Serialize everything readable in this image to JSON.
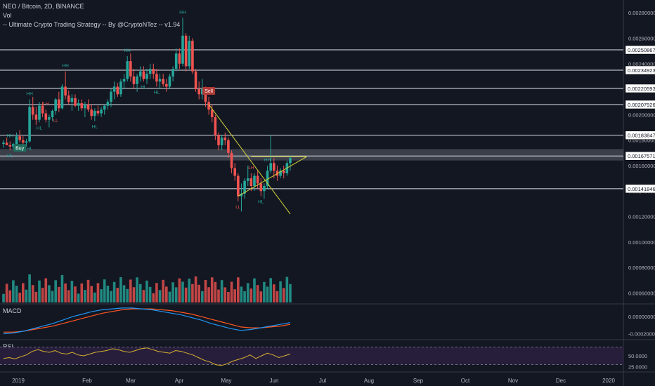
{
  "header": {
    "symbol_line": "NEO / Bitcoin, 2D, BINANCE",
    "vol_label": "Vol",
    "strategy_line": "-- Ultimate Crypto Trading Strategy -- By @CryptoNTez -- v1.94"
  },
  "panels": {
    "macd_label": "MACD",
    "rsi_label": "RSI"
  },
  "colors": {
    "background": "#131722",
    "up": "#26a69a",
    "down": "#ef5350",
    "hline": "#e0e3eb",
    "trendline": "#d4d43a",
    "macd_line": "#2196f3",
    "signal_line": "#ff5722",
    "rsi_line": "#d8b12e",
    "rsi_band": "#2a1f3f"
  },
  "chart_data": {
    "type": "candlestick",
    "price_axis": {
      "ticks": [
        "0.00280000",
        "0.00260000",
        "0.00240000",
        "0.00220000",
        "0.00200000",
        "0.00180000",
        "0.00160000",
        "0.00140000",
        "0.00120000",
        "0.00100000",
        "0.00080000",
        "0.00060000"
      ]
    },
    "horizontal_levels": [
      {
        "value": 0.00250867,
        "label": "0.00250867"
      },
      {
        "value": 0.00234923,
        "label": "0.00234923"
      },
      {
        "value": 0.00220593,
        "label": "0.00220593"
      },
      {
        "value": 0.00207926,
        "label": "0.00207926"
      },
      {
        "value": 0.00183847,
        "label": "0.00183847"
      },
      {
        "value": 0.00167571,
        "label": "0.00167571"
      },
      {
        "value": 0.00141846,
        "label": "0.00141846"
      }
    ],
    "time_axis": [
      "2019",
      "Feb",
      "Mar",
      "Apr",
      "May",
      "Jun",
      "Jul",
      "Aug",
      "Sep",
      "Oct",
      "Nov",
      "Dec",
      "2020"
    ],
    "candles": [
      [
        0.00177,
        0.0018,
        0.00174,
        0.00178
      ],
      [
        0.00178,
        0.00182,
        0.00176,
        0.00176
      ],
      [
        0.00176,
        0.00179,
        0.00172,
        0.00175
      ],
      [
        0.00175,
        0.00178,
        0.00173,
        0.00177
      ],
      [
        0.00177,
        0.00186,
        0.00175,
        0.00183
      ],
      [
        0.00183,
        0.00188,
        0.00178,
        0.0018
      ],
      [
        0.0018,
        0.00183,
        0.00176,
        0.00178
      ],
      [
        0.00178,
        0.00181,
        0.00175,
        0.00179
      ],
      [
        0.00179,
        0.00212,
        0.00178,
        0.00206
      ],
      [
        0.00206,
        0.00214,
        0.00196,
        0.002
      ],
      [
        0.002,
        0.00206,
        0.00192,
        0.00196
      ],
      [
        0.00196,
        0.0021,
        0.00194,
        0.00207
      ],
      [
        0.00207,
        0.0021,
        0.00198,
        0.00201
      ],
      [
        0.00201,
        0.00204,
        0.00194,
        0.00196
      ],
      [
        0.00196,
        0.002,
        0.0019,
        0.00198
      ],
      [
        0.00198,
        0.00204,
        0.00195,
        0.00203
      ],
      [
        0.00203,
        0.00213,
        0.002,
        0.00212
      ],
      [
        0.00212,
        0.00218,
        0.00202,
        0.00205
      ],
      [
        0.00205,
        0.00224,
        0.00204,
        0.00222
      ],
      [
        0.00222,
        0.00234,
        0.00212,
        0.00215
      ],
      [
        0.00215,
        0.00219,
        0.00208,
        0.0021
      ],
      [
        0.0021,
        0.00216,
        0.00203,
        0.00213
      ],
      [
        0.00213,
        0.00216,
        0.00206,
        0.00207
      ],
      [
        0.00207,
        0.00212,
        0.00203,
        0.00209
      ],
      [
        0.00209,
        0.00212,
        0.00203,
        0.00205
      ],
      [
        0.00205,
        0.0021,
        0.00198,
        0.00208
      ],
      [
        0.00208,
        0.00212,
        0.00202,
        0.00204
      ],
      [
        0.00204,
        0.00208,
        0.00196,
        0.00199
      ],
      [
        0.00199,
        0.00205,
        0.00195,
        0.00203
      ],
      [
        0.00203,
        0.00207,
        0.00199,
        0.00201
      ],
      [
        0.00201,
        0.00206,
        0.00198,
        0.00204
      ],
      [
        0.00204,
        0.00208,
        0.002,
        0.00207
      ],
      [
        0.00207,
        0.00212,
        0.00204,
        0.0021
      ],
      [
        0.0021,
        0.0022,
        0.00206,
        0.00218
      ],
      [
        0.00218,
        0.00226,
        0.00212,
        0.00222
      ],
      [
        0.00222,
        0.00225,
        0.00214,
        0.00216
      ],
      [
        0.00216,
        0.00228,
        0.00214,
        0.00226
      ],
      [
        0.00226,
        0.00232,
        0.0022,
        0.00228
      ],
      [
        0.00228,
        0.00246,
        0.00226,
        0.00242
      ],
      [
        0.00242,
        0.00248,
        0.00226,
        0.0023
      ],
      [
        0.0023,
        0.00236,
        0.0022,
        0.00224
      ],
      [
        0.00224,
        0.00232,
        0.00218,
        0.0023
      ],
      [
        0.0023,
        0.00238,
        0.00226,
        0.00234
      ],
      [
        0.00234,
        0.00238,
        0.00226,
        0.00228
      ],
      [
        0.00228,
        0.00236,
        0.00224,
        0.00232
      ],
      [
        0.00232,
        0.0024,
        0.00228,
        0.00236
      ],
      [
        0.00236,
        0.0024,
        0.00228,
        0.00232
      ],
      [
        0.00232,
        0.00236,
        0.00222,
        0.00226
      ],
      [
        0.00226,
        0.00232,
        0.0022,
        0.00228
      ],
      [
        0.00228,
        0.00232,
        0.00222,
        0.00224
      ],
      [
        0.00224,
        0.00228,
        0.00218,
        0.00222
      ],
      [
        0.00222,
        0.00232,
        0.0022,
        0.0023
      ],
      [
        0.0023,
        0.00238,
        0.00226,
        0.00236
      ],
      [
        0.00236,
        0.00252,
        0.00234,
        0.00248
      ],
      [
        0.00248,
        0.00252,
        0.00236,
        0.0024
      ],
      [
        0.0024,
        0.00276,
        0.00238,
        0.00262
      ],
      [
        0.00262,
        0.00264,
        0.00234,
        0.00238
      ],
      [
        0.00238,
        0.00262,
        0.00236,
        0.00258
      ],
      [
        0.00258,
        0.0026,
        0.00232,
        0.00234
      ],
      [
        0.00234,
        0.00236,
        0.00218,
        0.0022
      ],
      [
        0.0022,
        0.00226,
        0.00212,
        0.00216
      ],
      [
        0.00216,
        0.00228,
        0.00212,
        0.0022
      ],
      [
        0.0022,
        0.00222,
        0.00206,
        0.0021
      ],
      [
        0.0021,
        0.00214,
        0.002,
        0.00204
      ],
      [
        0.00204,
        0.00208,
        0.00194,
        0.00198
      ],
      [
        0.00198,
        0.002,
        0.0018,
        0.00184
      ],
      [
        0.00184,
        0.00186,
        0.00172,
        0.00176
      ],
      [
        0.00176,
        0.00184,
        0.00172,
        0.00182
      ],
      [
        0.00182,
        0.00186,
        0.00176,
        0.0018
      ],
      [
        0.0018,
        0.00182,
        0.00166,
        0.0017
      ],
      [
        0.0017,
        0.00172,
        0.00154,
        0.00158
      ],
      [
        0.00158,
        0.00162,
        0.00148,
        0.00152
      ],
      [
        0.00152,
        0.00154,
        0.00132,
        0.00136
      ],
      [
        0.00136,
        0.00146,
        0.00124,
        0.00138
      ],
      [
        0.00138,
        0.0015,
        0.00134,
        0.00148
      ],
      [
        0.00148,
        0.0016,
        0.00144,
        0.0015
      ],
      [
        0.0015,
        0.00154,
        0.0014,
        0.00144
      ],
      [
        0.00144,
        0.00154,
        0.0014,
        0.00152
      ],
      [
        0.00152,
        0.00156,
        0.00142,
        0.00146
      ],
      [
        0.00146,
        0.0015,
        0.00136,
        0.0014
      ],
      [
        0.0014,
        0.00146,
        0.00134,
        0.00144
      ],
      [
        0.00144,
        0.0016,
        0.00142,
        0.00156
      ],
      [
        0.00156,
        0.00184,
        0.00154,
        0.00162
      ],
      [
        0.00162,
        0.00166,
        0.0015,
        0.00156
      ],
      [
        0.00156,
        0.0016,
        0.00148,
        0.00152
      ],
      [
        0.00152,
        0.00158,
        0.0015,
        0.00156
      ],
      [
        0.00156,
        0.0016,
        0.0015,
        0.00154
      ],
      [
        0.00154,
        0.00164,
        0.00152,
        0.00162
      ],
      [
        0.00162,
        0.00168,
        0.00156,
        0.00166
      ]
    ],
    "volume_axis_note": "shares price axis ticks 0.00100000-0.00060000",
    "signals": [
      {
        "candle": 5,
        "text": "Buy",
        "type": "buy"
      },
      {
        "candle": 63,
        "text": "Sell",
        "type": "sell"
      }
    ],
    "pivot_labels": [
      {
        "candle": 2,
        "text": "HH",
        "pos": "above"
      },
      {
        "candle": 2,
        "text": "HL",
        "pos": "below"
      },
      {
        "candle": 8,
        "text": "HH",
        "pos": "above"
      },
      {
        "candle": 8,
        "text": "HL",
        "pos": "below"
      },
      {
        "candle": 11,
        "text": "HL",
        "pos": "below"
      },
      {
        "candle": 13,
        "text": "LH",
        "pos": "above"
      },
      {
        "candle": 16,
        "text": "LL",
        "pos": "below"
      },
      {
        "candle": 19,
        "text": "HH",
        "pos": "above"
      },
      {
        "candle": 28,
        "text": "HL",
        "pos": "below"
      },
      {
        "candle": 38,
        "text": "HH",
        "pos": "above"
      },
      {
        "candle": 43,
        "text": "HL",
        "pos": "below"
      },
      {
        "candle": 47,
        "text": "HL",
        "pos": "below"
      },
      {
        "candle": 55,
        "text": "HH",
        "pos": "above"
      },
      {
        "candle": 76,
        "text": "LH",
        "pos": "above"
      },
      {
        "candle": 72,
        "text": "LL",
        "pos": "below"
      },
      {
        "candle": 81,
        "text": "HH",
        "pos": "above"
      },
      {
        "candle": 79,
        "text": "HL",
        "pos": "below"
      }
    ],
    "trendlines": [
      {
        "from": [
          63,
          0.00208
        ],
        "to": [
          88,
          0.00122
        ]
      },
      {
        "from": [
          72,
          0.00136
        ],
        "to": [
          93,
          0.00167
        ]
      },
      {
        "from": [
          76,
          0.00167
        ],
        "to": [
          93,
          0.00167
        ]
      }
    ],
    "macd": {
      "ticks": [
        "0.00000000",
        "-0.00020000"
      ],
      "macd": [
        -0.0002,
        -0.00019,
        -0.00017,
        -0.00014,
        -0.00011,
        -8e-05,
        -4e-05,
        0.0,
        3e-05,
        6e-05,
        8e-05,
        9e-05,
        0.0001,
        0.0001,
        9e-05,
        8e-05,
        6e-05,
        4e-05,
        2e-05,
        -1e-05,
        -4e-05,
        -8e-05,
        -0.00011,
        -0.00014,
        -0.00016,
        -0.00015,
        -0.00013,
        -0.00011,
        -9e-05,
        -7e-05
      ],
      "signal": [
        -0.00018,
        -0.00018,
        -0.00017,
        -0.00015,
        -0.00013,
        -0.00011,
        -8e-05,
        -5e-05,
        -2e-05,
        1e-05,
        4e-05,
        6e-05,
        8e-05,
        9e-05,
        9e-05,
        9e-05,
        8e-05,
        7e-05,
        5e-05,
        3e-05,
        0.0,
        -3e-05,
        -6e-05,
        -9e-05,
        -0.00012,
        -0.00013,
        -0.00013,
        -0.00012,
        -0.00011,
        -9e-05
      ]
    },
    "rsi": {
      "ticks": [
        "50.0000",
        "25.0000"
      ],
      "values": [
        44,
        46,
        43,
        48,
        52,
        60,
        64,
        60,
        58,
        62,
        56,
        54,
        58,
        52,
        50,
        54,
        58,
        60,
        62,
        66,
        64,
        60,
        58,
        62,
        66,
        68,
        64,
        60,
        58,
        56,
        62,
        60,
        56,
        52,
        46,
        40,
        36,
        30,
        28,
        32,
        38,
        42,
        46,
        52,
        44,
        50,
        56,
        52,
        46,
        50,
        54
      ]
    }
  }
}
